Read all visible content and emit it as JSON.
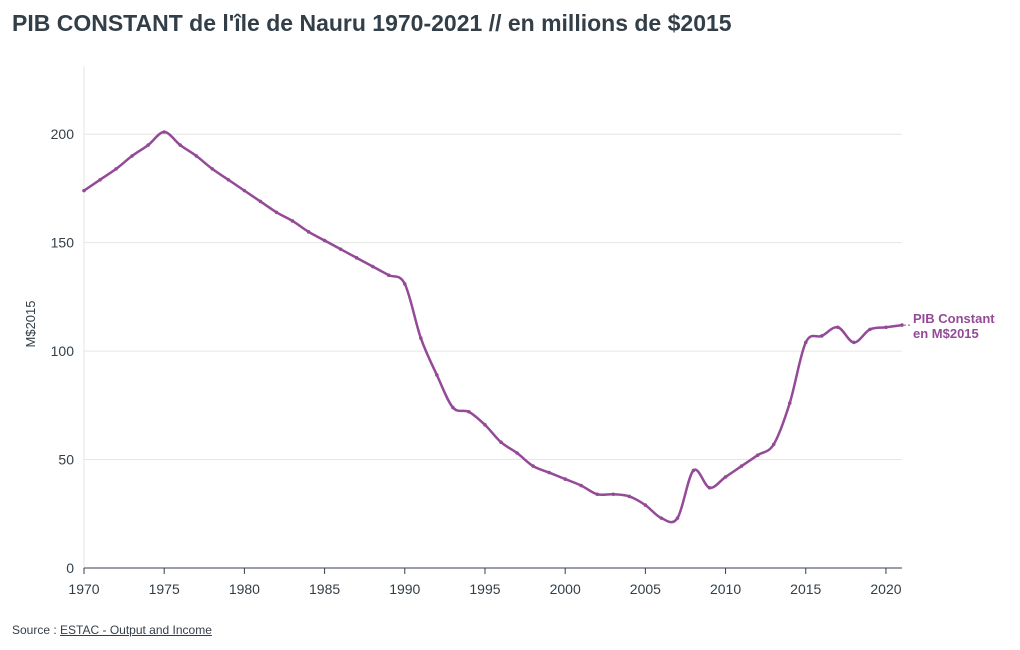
{
  "title": "PIB CONSTANT de l'île de Nauru 1970-2021 // en millions de $2015",
  "source": {
    "prefix": "Source : ",
    "link_text": "ESTAC - Output and Income"
  },
  "colors": {
    "series": "#944a97",
    "grid": "#e6e6e6",
    "axis": "#333f48",
    "text": "#333f48"
  },
  "chart_data": {
    "type": "line",
    "title": "PIB CONSTANT de l'île de Nauru 1970-2021 // en millions de $2015",
    "xlabel": "",
    "ylabel": "M$2015",
    "xlim": [
      1970,
      2021
    ],
    "ylim": [
      0,
      225
    ],
    "x_ticks": [
      1970,
      1975,
      1980,
      1985,
      1990,
      1995,
      2000,
      2005,
      2010,
      2015,
      2020
    ],
    "y_ticks": [
      0,
      50,
      100,
      150,
      200
    ],
    "grid": true,
    "series": [
      {
        "label_lines": [
          "PIB Constant",
          "en M$2015"
        ],
        "x": [
          1970,
          1971,
          1972,
          1973,
          1974,
          1975,
          1976,
          1977,
          1978,
          1979,
          1980,
          1981,
          1982,
          1983,
          1984,
          1985,
          1986,
          1987,
          1988,
          1989,
          1990,
          1991,
          1992,
          1993,
          1994,
          1995,
          1996,
          1997,
          1998,
          1999,
          2000,
          2001,
          2002,
          2003,
          2004,
          2005,
          2006,
          2007,
          2008,
          2009,
          2010,
          2011,
          2012,
          2013,
          2014,
          2015,
          2016,
          2017,
          2018,
          2019,
          2020,
          2021
        ],
        "values": [
          174,
          179,
          184,
          190,
          195,
          201,
          195,
          190,
          184,
          179,
          174,
          169,
          164,
          160,
          155,
          151,
          147,
          143,
          139,
          135,
          131,
          106,
          89,
          74,
          72,
          66,
          58,
          53,
          47,
          44,
          41,
          38,
          34,
          34,
          33,
          29,
          23,
          23,
          45,
          37,
          42,
          47,
          52,
          57,
          76,
          104,
          107,
          111,
          104,
          110,
          111,
          112
        ]
      }
    ]
  }
}
